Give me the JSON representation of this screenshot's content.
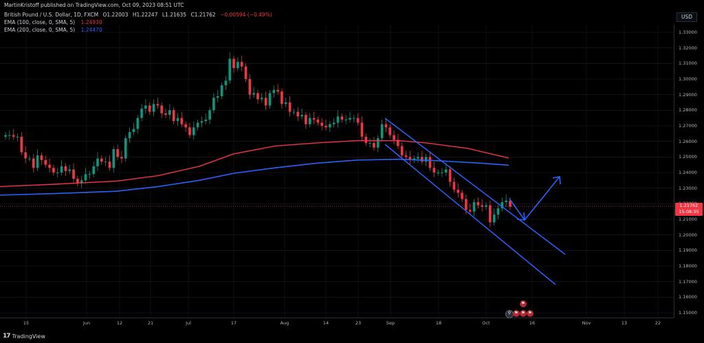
{
  "header": {
    "published": "MartinKristoff published on TradingView.com, Oct 09, 2023 08:51 UTC"
  },
  "legend": {
    "symbol": "British Pound / U.S. Dollar, 1D, FXCM",
    "ohlc": [
      "O1.22003",
      "H1.22247",
      "L1.21635",
      "C1.21762",
      "−0.00594 (−0.49%)"
    ],
    "ema100_label": "EMA (100, close, 0, SMA, 5)",
    "ema100_value": "1.24930",
    "ema200_label": "EMA (200, close, 0, SMA, 5)",
    "ema200_value": "1.24470"
  },
  "axis": {
    "currency": "USD",
    "price_labels": [
      "1.33000",
      "1.32000",
      "1.31000",
      "1.30000",
      "1.29000",
      "1.28000",
      "1.27000",
      "1.26000",
      "1.25000",
      "1.24000",
      "1.23000",
      "1.22000",
      "1.21000",
      "1.20000",
      "1.19000",
      "1.18000",
      "1.17000",
      "1.16000",
      "1.15000"
    ],
    "time_labels": [
      "15",
      "Jun",
      "12",
      "21",
      "Jul",
      "17",
      "Aug",
      "14",
      "23",
      "Sep",
      "18",
      "Oct",
      "16",
      "Nov",
      "13",
      "22"
    ]
  },
  "last_price": {
    "value": "1.21762",
    "countdown": "15:08:35"
  },
  "footer": {
    "brand": "TradingView"
  },
  "colors": {
    "up": "#089981",
    "down": "#f23645",
    "ema100": "#f23645",
    "ema200": "#2962ff",
    "channel": "#2962ff",
    "grid": "#1a1d26",
    "background": "#000000"
  }
}
